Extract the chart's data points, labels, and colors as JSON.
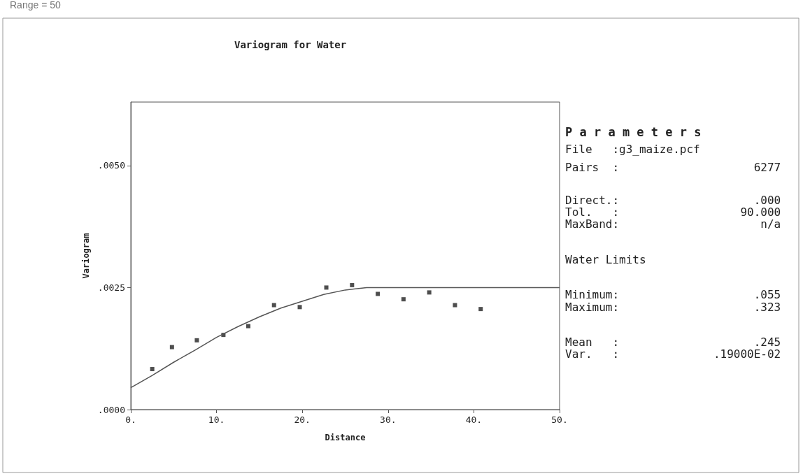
{
  "chart_data": {
    "type": "scatter",
    "title": "Variogram for Water",
    "xlabel": "Distance",
    "ylabel": "Variogram",
    "x": [
      2.5,
      4.8,
      7.7,
      10.8,
      13.7,
      16.7,
      19.7,
      22.8,
      25.8,
      28.8,
      31.8,
      34.8,
      37.8,
      40.8
    ],
    "series": [
      {
        "color": "#222222",
        "marker": "square",
        "values": [
          0.00083,
          0.00128,
          0.00142,
          0.00153,
          0.00171,
          0.00214,
          0.0021,
          0.0025,
          0.00255,
          0.00237,
          0.00226,
          0.0024,
          0.00214,
          0.00206
        ]
      },
      {
        "type": "line",
        "color": "#555555",
        "x": [
          0,
          2.5,
          5,
          7.5,
          10,
          12.5,
          15,
          17.5,
          20,
          22.5,
          25,
          27.5,
          35,
          50
        ],
        "values": [
          0.00045,
          0.0007,
          0.00097,
          0.00122,
          0.00148,
          0.0017,
          0.0019,
          0.00208,
          0.00222,
          0.00236,
          0.00245,
          0.0025,
          0.0025,
          0.0025
        ]
      }
    ],
    "xlim": [
      0,
      50
    ],
    "xticks": [
      {
        "value": 0,
        "label": "0."
      },
      {
        "value": 10,
        "label": "10."
      },
      {
        "value": 20,
        "label": "20."
      },
      {
        "value": 30,
        "label": "30."
      },
      {
        "value": 40,
        "label": "40."
      },
      {
        "value": 50,
        "label": "50."
      }
    ],
    "ylim": [
      0,
      0.0063
    ],
    "yticks": [
      {
        "value": 0,
        "label": ".0000"
      },
      {
        "value": 0.0025,
        "label": ".0025"
      },
      {
        "value": 0.005,
        "label": ".0050"
      }
    ],
    "annotations": [
      "Range = 50",
      "P a r a m e t e r s",
      "File   :g3_maize.pcf",
      "Pairs  :                    6277",
      "Direct.:                    .000",
      "Tol.   :                  90.000",
      "MaxBand:                     n/a",
      "Water Limits",
      "Minimum:                    .055",
      "Maximum:                    .323",
      "Mean   :                    .245",
      "Var.   :              .19000E-02"
    ]
  }
}
